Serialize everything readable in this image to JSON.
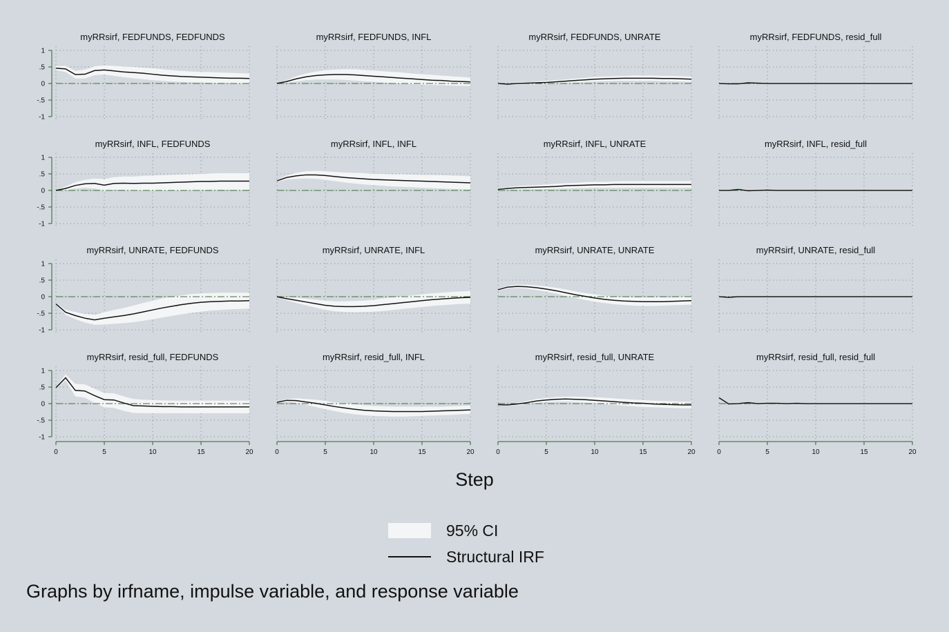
{
  "chart_data": {
    "type": "line",
    "layout": {
      "rows": 4,
      "cols": 4
    },
    "x": [
      0,
      1,
      2,
      3,
      4,
      5,
      6,
      7,
      8,
      9,
      10,
      11,
      12,
      13,
      14,
      15,
      16,
      17,
      18,
      19,
      20
    ],
    "xlim": [
      0,
      20
    ],
    "ylim": [
      -1,
      1
    ],
    "x_ticks": [
      "0",
      "5",
      "10",
      "15",
      "20"
    ],
    "y_ticks": [
      "1",
      ".5",
      "0",
      "-.5",
      "-1"
    ],
    "xlabel": "Step",
    "grid": true,
    "legend_placement": "bottom-center",
    "colors": {
      "background": "#d3d9de",
      "ci_band": "#f4f5f6",
      "irf_line": "#111111",
      "zero_line": "#3b6e3b"
    },
    "panels": [
      {
        "title": "myRRsirf, FEDFUNDS, FEDFUNDS",
        "irf": [
          0.46,
          0.44,
          0.27,
          0.28,
          0.39,
          0.41,
          0.38,
          0.35,
          0.33,
          0.31,
          0.28,
          0.25,
          0.23,
          0.21,
          0.2,
          0.19,
          0.18,
          0.17,
          0.16,
          0.16,
          0.15
        ],
        "ci_low": [
          0.4,
          0.35,
          0.15,
          0.15,
          0.25,
          0.27,
          0.23,
          0.19,
          0.16,
          0.13,
          0.1,
          0.08,
          0.06,
          0.05,
          0.04,
          0.03,
          0.02,
          0.02,
          0.01,
          0.01,
          0.0
        ],
        "ci_high": [
          0.52,
          0.53,
          0.38,
          0.42,
          0.52,
          0.55,
          0.53,
          0.51,
          0.5,
          0.48,
          0.46,
          0.43,
          0.4,
          0.38,
          0.36,
          0.35,
          0.34,
          0.33,
          0.32,
          0.31,
          0.3
        ]
      },
      {
        "title": "myRRsirf, FEDFUNDS, INFL",
        "irf": [
          0.0,
          0.06,
          0.14,
          0.2,
          0.24,
          0.26,
          0.27,
          0.27,
          0.26,
          0.24,
          0.22,
          0.2,
          0.18,
          0.16,
          0.14,
          0.12,
          0.1,
          0.09,
          0.07,
          0.06,
          0.05
        ],
        "ci_low": [
          0.0,
          0.02,
          0.06,
          0.1,
          0.12,
          0.12,
          0.12,
          0.11,
          0.09,
          0.07,
          0.05,
          0.03,
          0.01,
          -0.01,
          -0.02,
          -0.03,
          -0.04,
          -0.05,
          -0.06,
          -0.07,
          -0.08
        ],
        "ci_high": [
          0.0,
          0.1,
          0.22,
          0.3,
          0.36,
          0.4,
          0.42,
          0.43,
          0.43,
          0.41,
          0.39,
          0.37,
          0.35,
          0.33,
          0.3,
          0.28,
          0.26,
          0.24,
          0.22,
          0.2,
          0.18
        ]
      },
      {
        "title": "myRRsirf, FEDFUNDS, UNRATE",
        "irf": [
          0.0,
          -0.02,
          0.0,
          0.01,
          0.02,
          0.03,
          0.05,
          0.07,
          0.09,
          0.11,
          0.13,
          0.14,
          0.15,
          0.16,
          0.16,
          0.16,
          0.16,
          0.15,
          0.15,
          0.14,
          0.13
        ],
        "ci_low": [
          -0.02,
          -0.04,
          -0.03,
          -0.02,
          -0.02,
          -0.01,
          0.0,
          0.02,
          0.03,
          0.05,
          0.06,
          0.07,
          0.08,
          0.08,
          0.08,
          0.08,
          0.08,
          0.07,
          0.07,
          0.06,
          0.05
        ],
        "ci_high": [
          0.02,
          0.0,
          0.03,
          0.04,
          0.06,
          0.08,
          0.1,
          0.12,
          0.15,
          0.17,
          0.2,
          0.21,
          0.22,
          0.23,
          0.24,
          0.24,
          0.24,
          0.23,
          0.23,
          0.22,
          0.21
        ]
      },
      {
        "title": "myRRsirf, FEDFUNDS, resid_full",
        "irf": [
          0.0,
          -0.01,
          -0.01,
          0.02,
          0.01,
          0.0,
          0.0,
          0.0,
          0.0,
          0.0,
          0.0,
          0.0,
          0.0,
          0.0,
          0.0,
          0.0,
          0.0,
          0.0,
          0.0,
          0.0,
          0.0
        ],
        "ci_low": [
          -0.02,
          -0.03,
          -0.03,
          0.0,
          -0.01,
          -0.02,
          -0.02,
          -0.02,
          -0.02,
          -0.02,
          -0.02,
          -0.02,
          -0.02,
          -0.02,
          -0.02,
          -0.02,
          -0.02,
          -0.02,
          -0.02,
          -0.02,
          -0.02
        ],
        "ci_high": [
          0.02,
          0.01,
          0.01,
          0.04,
          0.03,
          0.02,
          0.02,
          0.02,
          0.02,
          0.02,
          0.02,
          0.02,
          0.02,
          0.02,
          0.02,
          0.02,
          0.02,
          0.02,
          0.02,
          0.02,
          0.02
        ]
      },
      {
        "title": "myRRsirf, INFL, FEDFUNDS",
        "irf": [
          0.0,
          0.06,
          0.15,
          0.2,
          0.21,
          0.16,
          0.21,
          0.22,
          0.21,
          0.22,
          0.22,
          0.23,
          0.24,
          0.25,
          0.26,
          0.27,
          0.27,
          0.28,
          0.28,
          0.28,
          0.28
        ],
        "ci_low": [
          0.0,
          0.0,
          0.06,
          0.08,
          0.06,
          -0.01,
          0.02,
          0.02,
          0.0,
          0.0,
          0.0,
          0.0,
          0.0,
          0.0,
          0.01,
          0.01,
          0.02,
          0.02,
          0.02,
          0.02,
          0.02
        ],
        "ci_high": [
          0.0,
          0.12,
          0.25,
          0.32,
          0.36,
          0.34,
          0.4,
          0.42,
          0.42,
          0.44,
          0.45,
          0.46,
          0.47,
          0.48,
          0.49,
          0.5,
          0.51,
          0.52,
          0.52,
          0.52,
          0.52
        ]
      },
      {
        "title": "myRRsirf, INFL, INFL",
        "irf": [
          0.29,
          0.39,
          0.44,
          0.47,
          0.47,
          0.45,
          0.42,
          0.39,
          0.37,
          0.35,
          0.33,
          0.32,
          0.31,
          0.3,
          0.29,
          0.28,
          0.27,
          0.26,
          0.25,
          0.24,
          0.23
        ],
        "ci_low": [
          0.26,
          0.33,
          0.35,
          0.36,
          0.35,
          0.32,
          0.28,
          0.24,
          0.21,
          0.18,
          0.16,
          0.14,
          0.12,
          0.11,
          0.1,
          0.08,
          0.07,
          0.06,
          0.05,
          0.04,
          0.03
        ],
        "ci_high": [
          0.32,
          0.45,
          0.53,
          0.58,
          0.59,
          0.58,
          0.56,
          0.54,
          0.53,
          0.52,
          0.5,
          0.5,
          0.49,
          0.49,
          0.48,
          0.47,
          0.47,
          0.46,
          0.45,
          0.44,
          0.43
        ]
      },
      {
        "title": "myRRsirf, INFL, UNRATE",
        "irf": [
          0.03,
          0.06,
          0.08,
          0.09,
          0.1,
          0.11,
          0.12,
          0.14,
          0.15,
          0.16,
          0.17,
          0.17,
          0.18,
          0.18,
          0.18,
          0.18,
          0.18,
          0.18,
          0.18,
          0.18,
          0.18
        ],
        "ci_low": [
          0.01,
          0.02,
          0.03,
          0.03,
          0.04,
          0.04,
          0.05,
          0.06,
          0.07,
          0.07,
          0.08,
          0.08,
          0.08,
          0.08,
          0.08,
          0.08,
          0.08,
          0.08,
          0.08,
          0.08,
          0.08
        ],
        "ci_high": [
          0.05,
          0.1,
          0.13,
          0.15,
          0.16,
          0.18,
          0.2,
          0.22,
          0.23,
          0.25,
          0.26,
          0.26,
          0.27,
          0.28,
          0.28,
          0.28,
          0.28,
          0.28,
          0.28,
          0.28,
          0.28
        ]
      },
      {
        "title": "myRRsirf, INFL, resid_full",
        "irf": [
          0.0,
          0.0,
          0.03,
          -0.01,
          0.0,
          0.01,
          0.0,
          0.0,
          0.0,
          0.0,
          0.0,
          0.0,
          0.0,
          0.0,
          0.0,
          0.0,
          0.0,
          0.0,
          0.0,
          0.0,
          0.0
        ],
        "ci_low": [
          -0.02,
          -0.02,
          0.01,
          -0.03,
          -0.02,
          -0.01,
          -0.02,
          -0.02,
          -0.02,
          -0.02,
          -0.02,
          -0.02,
          -0.02,
          -0.02,
          -0.02,
          -0.02,
          -0.02,
          -0.02,
          -0.02,
          -0.02,
          -0.02
        ],
        "ci_high": [
          0.02,
          0.02,
          0.05,
          0.01,
          0.02,
          0.03,
          0.02,
          0.02,
          0.02,
          0.02,
          0.02,
          0.02,
          0.02,
          0.02,
          0.02,
          0.02,
          0.02,
          0.02,
          0.02,
          0.02,
          0.02
        ]
      },
      {
        "title": "myRRsirf, UNRATE, FEDFUNDS",
        "irf": [
          -0.22,
          -0.47,
          -0.57,
          -0.65,
          -0.7,
          -0.65,
          -0.61,
          -0.57,
          -0.52,
          -0.46,
          -0.4,
          -0.34,
          -0.29,
          -0.24,
          -0.2,
          -0.17,
          -0.15,
          -0.14,
          -0.13,
          -0.13,
          -0.12
        ],
        "ci_low": [
          -0.25,
          -0.55,
          -0.68,
          -0.78,
          -0.85,
          -0.84,
          -0.82,
          -0.8,
          -0.77,
          -0.73,
          -0.68,
          -0.63,
          -0.58,
          -0.53,
          -0.49,
          -0.45,
          -0.42,
          -0.4,
          -0.38,
          -0.37,
          -0.36
        ],
        "ci_high": [
          -0.19,
          -0.4,
          -0.46,
          -0.52,
          -0.55,
          -0.47,
          -0.4,
          -0.34,
          -0.27,
          -0.19,
          -0.12,
          -0.05,
          0.0,
          0.04,
          0.08,
          0.1,
          0.11,
          0.12,
          0.12,
          0.12,
          0.12
        ]
      },
      {
        "title": "myRRsirf, UNRATE, INFL",
        "irf": [
          0.0,
          -0.06,
          -0.11,
          -0.16,
          -0.21,
          -0.26,
          -0.29,
          -0.3,
          -0.3,
          -0.29,
          -0.27,
          -0.24,
          -0.21,
          -0.18,
          -0.15,
          -0.12,
          -0.09,
          -0.07,
          -0.05,
          -0.03,
          -0.02
        ],
        "ci_low": [
          0.0,
          -0.11,
          -0.19,
          -0.26,
          -0.33,
          -0.4,
          -0.44,
          -0.46,
          -0.47,
          -0.46,
          -0.45,
          -0.43,
          -0.4,
          -0.37,
          -0.34,
          -0.31,
          -0.28,
          -0.26,
          -0.24,
          -0.22,
          -0.21
        ],
        "ci_high": [
          0.0,
          -0.01,
          -0.03,
          -0.06,
          -0.09,
          -0.12,
          -0.14,
          -0.14,
          -0.13,
          -0.12,
          -0.09,
          -0.05,
          -0.02,
          0.01,
          0.04,
          0.07,
          0.1,
          0.12,
          0.14,
          0.16,
          0.17
        ]
      },
      {
        "title": "myRRsirf, UNRATE, UNRATE",
        "irf": [
          0.21,
          0.29,
          0.31,
          0.3,
          0.27,
          0.23,
          0.18,
          0.12,
          0.06,
          0.01,
          -0.04,
          -0.08,
          -0.11,
          -0.13,
          -0.14,
          -0.15,
          -0.15,
          -0.15,
          -0.14,
          -0.13,
          -0.12
        ],
        "ci_low": [
          0.18,
          0.25,
          0.26,
          0.24,
          0.2,
          0.15,
          0.09,
          0.02,
          -0.04,
          -0.1,
          -0.15,
          -0.19,
          -0.23,
          -0.25,
          -0.27,
          -0.28,
          -0.28,
          -0.27,
          -0.26,
          -0.25,
          -0.24
        ],
        "ci_high": [
          0.24,
          0.33,
          0.36,
          0.36,
          0.34,
          0.31,
          0.27,
          0.22,
          0.16,
          0.11,
          0.07,
          0.03,
          0.0,
          -0.01,
          -0.02,
          -0.02,
          -0.02,
          -0.02,
          -0.02,
          -0.01,
          0.0
        ]
      },
      {
        "title": "myRRsirf, UNRATE, resid_full",
        "irf": [
          0.0,
          -0.02,
          0.0,
          0.0,
          0.0,
          0.0,
          0.0,
          0.0,
          0.0,
          0.0,
          0.0,
          0.0,
          0.0,
          0.0,
          0.0,
          0.0,
          0.0,
          0.0,
          0.0,
          0.0,
          0.0
        ],
        "ci_low": [
          -0.02,
          -0.04,
          -0.02,
          -0.02,
          -0.02,
          -0.02,
          -0.02,
          -0.02,
          -0.02,
          -0.02,
          -0.02,
          -0.02,
          -0.02,
          -0.02,
          -0.02,
          -0.02,
          -0.02,
          -0.02,
          -0.02,
          -0.02,
          -0.02
        ],
        "ci_high": [
          0.02,
          0.0,
          0.02,
          0.02,
          0.02,
          0.02,
          0.02,
          0.02,
          0.02,
          0.02,
          0.02,
          0.02,
          0.02,
          0.02,
          0.02,
          0.02,
          0.02,
          0.02,
          0.02,
          0.02,
          0.02
        ]
      },
      {
        "title": "myRRsirf, resid_full, FEDFUNDS",
        "irf": [
          0.48,
          0.78,
          0.4,
          0.38,
          0.24,
          0.12,
          0.11,
          0.02,
          -0.06,
          -0.07,
          -0.08,
          -0.09,
          -0.09,
          -0.1,
          -0.1,
          -0.1,
          -0.1,
          -0.1,
          -0.1,
          -0.1,
          -0.1
        ],
        "ci_low": [
          0.45,
          0.7,
          0.22,
          0.18,
          0.02,
          -0.11,
          -0.13,
          -0.22,
          -0.28,
          -0.29,
          -0.29,
          -0.29,
          -0.29,
          -0.29,
          -0.29,
          -0.29,
          -0.29,
          -0.29,
          -0.29,
          -0.29,
          -0.29
        ],
        "ci_high": [
          0.51,
          0.88,
          0.6,
          0.58,
          0.45,
          0.32,
          0.31,
          0.22,
          0.14,
          0.12,
          0.11,
          0.1,
          0.09,
          0.09,
          0.09,
          0.09,
          0.09,
          0.09,
          0.09,
          0.09,
          0.09
        ]
      },
      {
        "title": "myRRsirf, resid_full, INFL",
        "irf": [
          0.04,
          0.1,
          0.09,
          0.05,
          0.01,
          -0.04,
          -0.09,
          -0.13,
          -0.17,
          -0.2,
          -0.22,
          -0.23,
          -0.24,
          -0.24,
          -0.24,
          -0.24,
          -0.23,
          -0.22,
          -0.21,
          -0.2,
          -0.19
        ],
        "ci_low": [
          0.02,
          0.06,
          0.02,
          -0.04,
          -0.1,
          -0.17,
          -0.23,
          -0.28,
          -0.32,
          -0.35,
          -0.37,
          -0.38,
          -0.39,
          -0.39,
          -0.38,
          -0.37,
          -0.36,
          -0.35,
          -0.34,
          -0.32,
          -0.31
        ],
        "ci_high": [
          0.06,
          0.14,
          0.16,
          0.14,
          0.12,
          0.08,
          0.04,
          0.01,
          -0.02,
          -0.05,
          -0.07,
          -0.08,
          -0.09,
          -0.09,
          -0.09,
          -0.09,
          -0.09,
          -0.09,
          -0.08,
          -0.07,
          -0.06
        ]
      },
      {
        "title": "myRRsirf, resid_full, UNRATE",
        "irf": [
          -0.03,
          -0.04,
          -0.01,
          0.03,
          0.08,
          0.11,
          0.13,
          0.14,
          0.13,
          0.12,
          0.1,
          0.08,
          0.06,
          0.04,
          0.02,
          0.01,
          -0.01,
          -0.02,
          -0.03,
          -0.04,
          -0.04
        ],
        "ci_low": [
          -0.05,
          -0.07,
          -0.05,
          -0.02,
          0.02,
          0.05,
          0.06,
          0.06,
          0.05,
          0.03,
          0.01,
          -0.02,
          -0.04,
          -0.06,
          -0.08,
          -0.1,
          -0.11,
          -0.12,
          -0.13,
          -0.14,
          -0.14
        ],
        "ci_high": [
          -0.01,
          -0.01,
          0.03,
          0.08,
          0.14,
          0.17,
          0.2,
          0.21,
          0.21,
          0.2,
          0.19,
          0.18,
          0.16,
          0.14,
          0.12,
          0.11,
          0.09,
          0.08,
          0.07,
          0.06,
          0.06
        ]
      },
      {
        "title": "myRRsirf, resid_full, resid_full",
        "irf": [
          0.18,
          -0.01,
          0.0,
          0.03,
          0.0,
          0.01,
          0.01,
          0.0,
          0.01,
          0.0,
          0.0,
          0.0,
          0.0,
          0.0,
          0.0,
          0.0,
          0.0,
          0.0,
          0.0,
          0.0,
          0.0
        ],
        "ci_low": [
          0.16,
          -0.03,
          -0.02,
          0.01,
          -0.02,
          -0.01,
          -0.01,
          -0.02,
          -0.01,
          -0.02,
          -0.02,
          -0.02,
          -0.02,
          -0.02,
          -0.02,
          -0.02,
          -0.02,
          -0.02,
          -0.02,
          -0.02,
          -0.02
        ],
        "ci_high": [
          0.2,
          0.01,
          0.02,
          0.05,
          0.02,
          0.03,
          0.03,
          0.02,
          0.03,
          0.02,
          0.02,
          0.02,
          0.02,
          0.02,
          0.02,
          0.02,
          0.02,
          0.02,
          0.02,
          0.02,
          0.02
        ]
      }
    ],
    "legend": [
      {
        "label": "95% CI"
      },
      {
        "label": "Structural IRF"
      }
    ],
    "caption": "Graphs by irfname, impulse variable, and response variable"
  }
}
